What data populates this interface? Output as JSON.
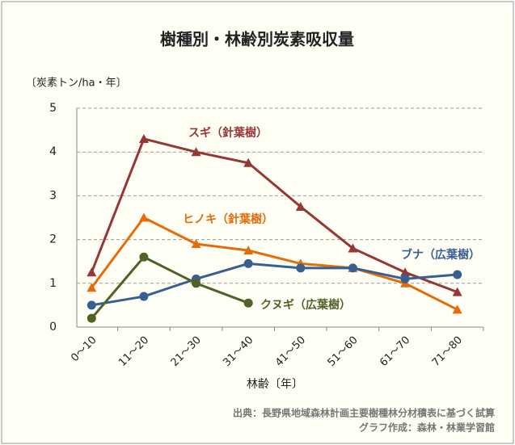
{
  "chart_data": {
    "type": "line",
    "title": "樹種別・林齢別炭素吸収量",
    "y_label": "〔炭素トン/ha・年〕",
    "x_label": "林齢〔年〕",
    "source": [
      "出典：長野県地域森林計画主要樹種林分材積表に基づく試算",
      "グラフ作成：森林・林業学習館"
    ],
    "categories": [
      "0～10",
      "11～20",
      "21～30",
      "31～40",
      "41～50",
      "51～60",
      "61～70",
      "71～80"
    ],
    "series": [
      {
        "name": "スギ（針葉樹）",
        "color": "#953735",
        "marker": "triangle",
        "values": [
          1.25,
          4.3,
          4.0,
          3.75,
          2.75,
          1.8,
          1.25,
          0.8
        ]
      },
      {
        "name": "ヒノキ（針葉樹）",
        "color": "#e46c0a",
        "marker": "triangle",
        "values": [
          0.9,
          2.5,
          1.9,
          1.75,
          1.45,
          1.35,
          1.0,
          0.4
        ]
      },
      {
        "name": "ブナ（広葉樹）",
        "color": "#376092",
        "marker": "circle",
        "values": [
          0.5,
          0.7,
          1.1,
          1.45,
          1.35,
          1.35,
          1.1,
          1.2
        ]
      },
      {
        "name": "クヌギ（広葉樹）",
        "color": "#4f6228",
        "marker": "circle",
        "values": [
          0.2,
          1.6,
          1.0,
          0.55,
          null,
          null,
          null,
          null
        ]
      }
    ],
    "ylim": [
      0,
      5
    ],
    "yticks": [
      0,
      1,
      2,
      3,
      4,
      5
    ],
    "grid": true
  }
}
